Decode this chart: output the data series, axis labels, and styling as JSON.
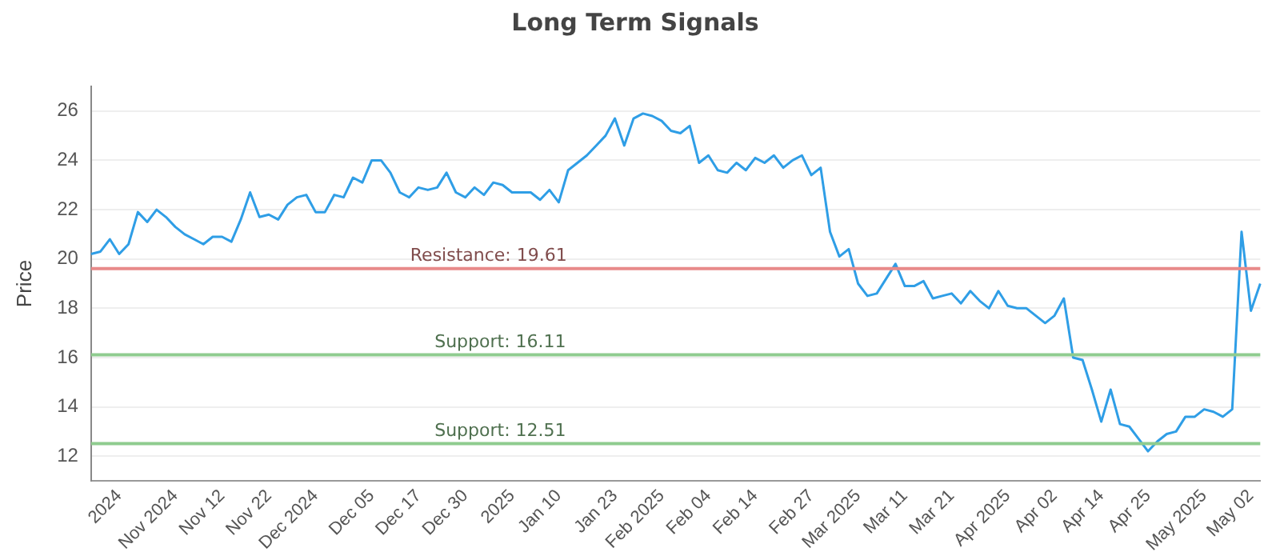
{
  "chart_data": {
    "type": "line",
    "title": "Long Term Signals",
    "ylabel": "Price",
    "categories": [
      null,
      null,
      null,
      "2024",
      null,
      null,
      null,
      null,
      null,
      "Nov 2024",
      null,
      null,
      null,
      null,
      "Nov 12",
      null,
      null,
      null,
      null,
      "Nov 22",
      null,
      null,
      null,
      null,
      "Dec 2024",
      null,
      null,
      null,
      null,
      null,
      "Dec 05",
      null,
      null,
      null,
      null,
      "Dec 17",
      null,
      null,
      null,
      null,
      "Dec 30",
      null,
      null,
      null,
      null,
      "2025",
      null,
      null,
      null,
      null,
      "Jan 10",
      null,
      null,
      null,
      null,
      null,
      "Jan 23",
      null,
      null,
      null,
      null,
      "Feb 2025",
      null,
      null,
      null,
      null,
      "Feb 04",
      null,
      null,
      null,
      null,
      "Feb 14",
      null,
      null,
      null,
      null,
      null,
      "Feb 27",
      null,
      null,
      null,
      null,
      "Mar 2025",
      null,
      null,
      null,
      null,
      "Mar 11",
      null,
      null,
      null,
      null,
      "Mar 21",
      null,
      null,
      null,
      null,
      null,
      "Apr 2025",
      null,
      null,
      null,
      null,
      "Apr 02",
      null,
      null,
      null,
      null,
      "Apr 14",
      null,
      null,
      null,
      null,
      "Apr 25",
      null,
      null,
      null,
      null,
      null,
      "May 2025",
      null,
      null,
      null,
      null,
      "May 02",
      null
    ],
    "series": [
      {
        "color": "#2f9ee6",
        "values": [
          20.2,
          20.3,
          20.8,
          20.2,
          20.6,
          21.9,
          21.5,
          22.0,
          21.7,
          21.3,
          21.0,
          20.8,
          20.6,
          20.9,
          20.9,
          20.7,
          21.6,
          22.7,
          21.7,
          21.8,
          21.6,
          22.2,
          22.5,
          22.6,
          21.9,
          21.9,
          22.6,
          22.5,
          23.3,
          23.1,
          24.0,
          24.0,
          23.5,
          22.7,
          22.5,
          22.9,
          22.8,
          22.9,
          23.5,
          22.7,
          22.5,
          22.9,
          22.6,
          23.1,
          23.0,
          22.7,
          22.7,
          22.7,
          22.4,
          22.8,
          22.3,
          23.6,
          23.9,
          24.2,
          24.6,
          25.0,
          25.7,
          24.6,
          25.7,
          25.9,
          25.8,
          25.6,
          25.2,
          25.1,
          25.4,
          23.9,
          24.2,
          23.6,
          23.5,
          23.9,
          23.6,
          24.1,
          23.9,
          24.2,
          23.7,
          24.0,
          24.2,
          23.4,
          23.7,
          21.1,
          20.1,
          20.4,
          19.0,
          18.5,
          18.6,
          19.2,
          19.8,
          18.9,
          18.9,
          19.1,
          18.4,
          18.5,
          18.6,
          18.2,
          18.7,
          18.3,
          18.0,
          18.7,
          18.1,
          18.0,
          18.0,
          17.7,
          17.4,
          17.7,
          18.4,
          16.0,
          15.9,
          14.7,
          13.4,
          14.7,
          13.3,
          13.2,
          12.7,
          12.2,
          12.6,
          12.9,
          13.0,
          13.6,
          13.6,
          13.9,
          13.8,
          13.6,
          13.9,
          21.1,
          17.9,
          19.0
        ]
      }
    ],
    "ylim": [
      11,
      27
    ],
    "yticks": [
      12,
      14,
      16,
      18,
      20,
      22,
      24,
      26
    ],
    "grid": "y",
    "marker": "none",
    "line_style": "solid",
    "legend": false,
    "ref_lines": [
      {
        "axis": "y",
        "value": 19.61,
        "label": "Resistance: 19.61",
        "color": "#e88a8a"
      },
      {
        "axis": "y",
        "value": 16.11,
        "label": "Support: 16.11",
        "color": "#8fcc8f"
      },
      {
        "axis": "y",
        "value": 12.51,
        "label": "Support: 12.51",
        "color": "#8fcc8f"
      }
    ]
  }
}
